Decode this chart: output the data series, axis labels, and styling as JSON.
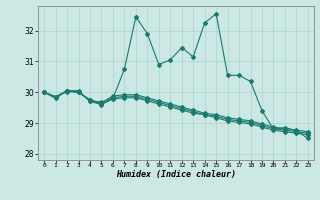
{
  "title": "",
  "xlabel": "Humidex (Indice chaleur)",
  "bg_color": "#cce8e4",
  "line_color": "#1a7a6e",
  "grid_color": "#aad4cc",
  "xlim": [
    -0.5,
    23.5
  ],
  "ylim": [
    27.8,
    32.8
  ],
  "yticks": [
    28,
    29,
    30,
    31,
    32
  ],
  "xticks": [
    0,
    1,
    2,
    3,
    4,
    5,
    6,
    7,
    8,
    9,
    10,
    11,
    12,
    13,
    14,
    15,
    16,
    17,
    18,
    19,
    20,
    21,
    22,
    23
  ],
  "series": [
    [
      30.0,
      29.8,
      30.05,
      30.05,
      29.7,
      29.6,
      29.8,
      30.75,
      32.45,
      31.9,
      30.9,
      31.05,
      31.45,
      31.15,
      32.25,
      32.55,
      30.55,
      30.55,
      30.35,
      29.4,
      28.8,
      28.85,
      28.75,
      28.5
    ],
    [
      30.0,
      29.85,
      30.05,
      30.0,
      29.75,
      29.65,
      29.88,
      29.92,
      29.92,
      29.82,
      29.72,
      29.62,
      29.52,
      29.42,
      29.32,
      29.27,
      29.17,
      29.12,
      29.07,
      28.97,
      28.87,
      28.82,
      28.77,
      28.72
    ],
    [
      30.0,
      29.85,
      30.02,
      30.0,
      29.72,
      29.68,
      29.82,
      29.87,
      29.87,
      29.77,
      29.67,
      29.57,
      29.47,
      29.37,
      29.27,
      29.22,
      29.12,
      29.07,
      29.02,
      28.92,
      28.82,
      28.77,
      28.72,
      28.67
    ],
    [
      30.0,
      29.85,
      30.05,
      30.0,
      29.75,
      29.62,
      29.78,
      29.82,
      29.82,
      29.72,
      29.62,
      29.52,
      29.42,
      29.32,
      29.27,
      29.17,
      29.07,
      29.02,
      28.97,
      28.87,
      28.77,
      28.72,
      28.67,
      28.62
    ]
  ]
}
